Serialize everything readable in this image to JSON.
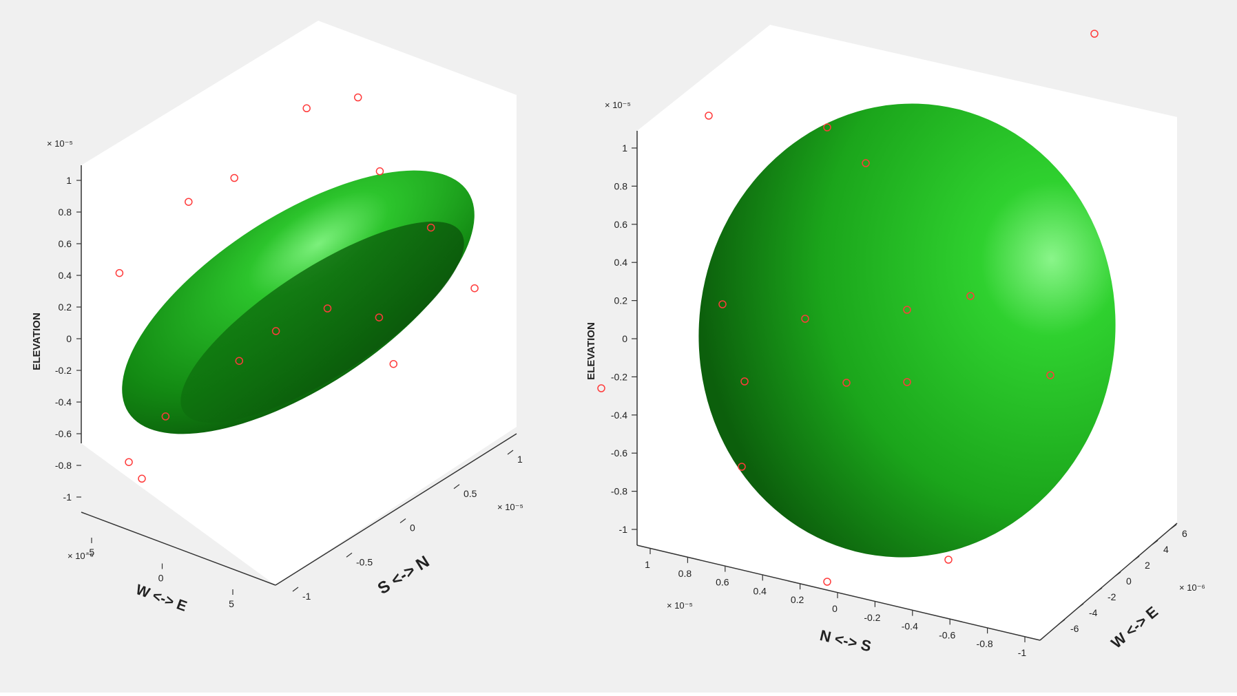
{
  "colors": {
    "background": "#f0f0f0",
    "axes_face": "#ffffff",
    "axis_line": "#333333",
    "surface": "#1f9e1f",
    "marker": "#ff3b3b",
    "text": "#222222"
  },
  "chart_data": [
    {
      "type": "scatter",
      "subtype": "3d-ellipsoid-with-points",
      "marker": "circle-open",
      "zlabel": "ELEVATION",
      "xlabel": "W <-> E",
      "ylabel": "S <-> N",
      "z_exponent": "× 10⁻⁵",
      "x_exponent": "× 10⁻⁶",
      "y_exponent": "× 10⁻⁵",
      "zticks": [
        "1",
        "0.8",
        "0.6",
        "0.4",
        "0.2",
        "0",
        "-0.2",
        "-0.4",
        "-0.6",
        "-0.8",
        "-1"
      ],
      "xticks": [
        "-5",
        "0",
        "5"
      ],
      "yticks": [
        "-1",
        "-0.5",
        "0",
        "0.5",
        "1"
      ],
      "zlim": [
        -1,
        1
      ],
      "xlim": [
        -6,
        6
      ],
      "ylim": [
        -1,
        1
      ],
      "ellipsoid": {
        "center": [
          0,
          0,
          0
        ],
        "radii": [
          6,
          0.55,
          0.8
        ]
      },
      "points": [
        {
          "x": -5.6,
          "y": -0.2,
          "z": 0.02
        },
        {
          "x": -4.0,
          "y": 0.1,
          "z": 0.45
        },
        {
          "x": -3.2,
          "y": 0.4,
          "z": 0.55
        },
        {
          "x": -2.0,
          "y": 0.9,
          "z": 0.9
        },
        {
          "x": -0.5,
          "y": 1.0,
          "z": 1.0
        },
        {
          "x": 0.5,
          "y": 0.9,
          "z": 0.6
        },
        {
          "x": 2.5,
          "y": 0.8,
          "z": 0.35
        },
        {
          "x": 4.5,
          "y": 0.6,
          "z": 0.1
        },
        {
          "x": 1.0,
          "y": 0.0,
          "z": 0.0
        },
        {
          "x": 0.0,
          "y": -0.3,
          "z": -0.1
        },
        {
          "x": -1.0,
          "y": -0.4,
          "z": -0.3
        },
        {
          "x": -2.5,
          "y": -0.8,
          "z": -0.6
        },
        {
          "x": 2.0,
          "y": 0.3,
          "z": -0.1
        },
        {
          "x": 3.0,
          "y": 0.1,
          "z": -0.3
        },
        {
          "x": -3.5,
          "y": -0.9,
          "z": -0.9
        },
        {
          "x": -2.8,
          "y": -1.0,
          "z": -0.95
        }
      ]
    },
    {
      "type": "scatter",
      "subtype": "3d-ellipsoid-with-points",
      "marker": "circle-open",
      "zlabel": "ELEVATION",
      "xlabel": "N <-> S",
      "ylabel": "W <-> E",
      "z_exponent": "× 10⁻⁵",
      "x_exponent": "× 10⁻⁵",
      "y_exponent": "× 10⁻⁶",
      "zticks": [
        "1",
        "0.8",
        "0.6",
        "0.4",
        "0.2",
        "0",
        "-0.2",
        "-0.4",
        "-0.6",
        "-0.8",
        "-1"
      ],
      "xticks": [
        "1",
        "0.8",
        "0.6",
        "0.4",
        "0.2",
        "0",
        "-0.2",
        "-0.4",
        "-0.6",
        "-0.8",
        "-1"
      ],
      "yticks": [
        "-6",
        "-4",
        "-2",
        "0",
        "2",
        "4",
        "6"
      ],
      "zlim": [
        -1,
        1
      ],
      "xlim": [
        -1,
        1
      ],
      "ylim": [
        -6,
        6
      ],
      "ellipsoid": {
        "center": [
          0,
          0,
          0
        ],
        "radii": [
          0.55,
          6,
          1.0
        ]
      },
      "points": [
        {
          "x": 0.8,
          "y": -2.0,
          "z": 1.2
        },
        {
          "x": -0.4,
          "y": 5.0,
          "z": 1.25
        },
        {
          "x": 0.3,
          "y": -1.0,
          "z": 1.05
        },
        {
          "x": 0.1,
          "y": -1.0,
          "z": 0.85
        },
        {
          "x": 0.5,
          "y": -4.0,
          "z": 0.3
        },
        {
          "x": 0.3,
          "y": -2.0,
          "z": 0.15
        },
        {
          "x": -0.1,
          "y": 2.0,
          "z": 0.1
        },
        {
          "x": 0.0,
          "y": 0.0,
          "z": 0.1
        },
        {
          "x": 0.9,
          "y": -6.0,
          "z": 0.0
        },
        {
          "x": 0.5,
          "y": -3.0,
          "z": -0.1
        },
        {
          "x": 0.2,
          "y": -1.0,
          "z": -0.2
        },
        {
          "x": 0.0,
          "y": 0.0,
          "z": -0.25
        },
        {
          "x": -0.4,
          "y": 3.0,
          "z": -0.35
        },
        {
          "x": 0.4,
          "y": -4.0,
          "z": -0.5
        },
        {
          "x": 0.3,
          "y": -1.0,
          "z": -1.15
        },
        {
          "x": -0.1,
          "y": 1.0,
          "z": -1.15
        }
      ]
    }
  ]
}
